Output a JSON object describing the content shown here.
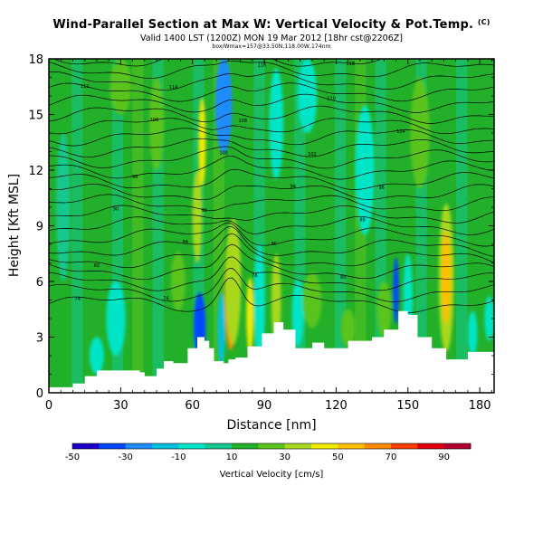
{
  "title": "Wind-Parallel Section at Max W: Vertical Velocity & Pot.Temp.",
  "title_suffix": "(C)",
  "subtitle": "Valid 1400 LST (1200Z) MON 19 Mar 2012 [18hr cst@2206Z]",
  "subtitle2": "box/Wmax=157@33.50N,118.00W,174nm",
  "chart_data": {
    "type": "heatmap",
    "xlabel": "Distance [nm]",
    "ylabel": "Height [Kft MSL]",
    "xlim": [
      0,
      186
    ],
    "ylim": [
      0,
      18
    ],
    "xticks": [
      "0",
      "30",
      "60",
      "90",
      "120",
      "150",
      "180"
    ],
    "yticks": [
      "0",
      "3",
      "6",
      "9",
      "12",
      "15",
      "18"
    ],
    "grid": false,
    "colorbar": {
      "label": "Vertical Velocity [cm/s]",
      "tick_labels": [
        "-50",
        "-30",
        "-10",
        "10",
        "30",
        "50",
        "70",
        "90"
      ],
      "range": [
        -50,
        100
      ],
      "colors": [
        "#1a00c8",
        "#0046ff",
        "#1e8cff",
        "#00bfdf",
        "#00e5c8",
        "#15c88f",
        "#22b02a",
        "#5ac41e",
        "#a8d81e",
        "#f0ea00",
        "#ffbf00",
        "#ff8a00",
        "#ff4000",
        "#e00010",
        "#b00030"
      ]
    },
    "terrain_kft": [
      {
        "x": 0,
        "h": 0.3
      },
      {
        "x": 10,
        "h": 0.5
      },
      {
        "x": 15,
        "h": 0.9
      },
      {
        "x": 20,
        "h": 1.2
      },
      {
        "x": 30,
        "h": 1.2
      },
      {
        "x": 38,
        "h": 1.1
      },
      {
        "x": 40,
        "h": 0.9
      },
      {
        "x": 45,
        "h": 1.3
      },
      {
        "x": 48,
        "h": 1.7
      },
      {
        "x": 52,
        "h": 1.6
      },
      {
        "x": 58,
        "h": 2.4
      },
      {
        "x": 62,
        "h": 3.0
      },
      {
        "x": 65,
        "h": 2.8
      },
      {
        "x": 67,
        "h": 2.4
      },
      {
        "x": 69,
        "h": 1.7
      },
      {
        "x": 73,
        "h": 1.6
      },
      {
        "x": 75,
        "h": 1.8
      },
      {
        "x": 78,
        "h": 1.9
      },
      {
        "x": 83,
        "h": 2.5
      },
      {
        "x": 89,
        "h": 3.2
      },
      {
        "x": 94,
        "h": 3.8
      },
      {
        "x": 98,
        "h": 3.4
      },
      {
        "x": 103,
        "h": 2.4
      },
      {
        "x": 110,
        "h": 2.7
      },
      {
        "x": 115,
        "h": 2.4
      },
      {
        "x": 125,
        "h": 2.8
      },
      {
        "x": 135,
        "h": 3.0
      },
      {
        "x": 140,
        "h": 3.4
      },
      {
        "x": 146,
        "h": 4.4
      },
      {
        "x": 150,
        "h": 4.2
      },
      {
        "x": 154,
        "h": 3.0
      },
      {
        "x": 160,
        "h": 2.4
      },
      {
        "x": 166,
        "h": 1.8
      },
      {
        "x": 175,
        "h": 2.2
      },
      {
        "x": 180,
        "h": 2.2
      },
      {
        "x": 186,
        "h": 2.2
      }
    ],
    "vertical_velocity_cells": [
      {
        "x": 76,
        "y": 5.5,
        "rx": 1.6,
        "ry": 2.6,
        "v": 95
      },
      {
        "x": 76,
        "y": 5.5,
        "rx": 2.6,
        "ry": 3.2,
        "v": 60
      },
      {
        "x": 77,
        "y": 6.0,
        "rx": 3.3,
        "ry": 3.4,
        "v": 35
      },
      {
        "x": 63,
        "y": 3.6,
        "rx": 2.5,
        "ry": 1.8,
        "v": -40
      },
      {
        "x": 72,
        "y": 3.4,
        "rx": 1.5,
        "ry": 2.0,
        "v": -20
      },
      {
        "x": 73,
        "y": 15.5,
        "rx": 3.5,
        "ry": 2.6,
        "v": -28
      },
      {
        "x": 64,
        "y": 13.5,
        "rx": 1.5,
        "ry": 2.4,
        "v": 40
      },
      {
        "x": 62,
        "y": 9.5,
        "rx": 2.0,
        "ry": 2.5,
        "v": 30
      },
      {
        "x": 84,
        "y": 4.2,
        "rx": 1.5,
        "ry": 2.0,
        "v": 45
      },
      {
        "x": 88,
        "y": 5.0,
        "rx": 2.2,
        "ry": 3.0,
        "v": -10
      },
      {
        "x": 95,
        "y": 5.0,
        "rx": 2.0,
        "ry": 2.5,
        "v": 30
      },
      {
        "x": 104,
        "y": 4.3,
        "rx": 2.5,
        "ry": 1.8,
        "v": -8
      },
      {
        "x": 145,
        "y": 5.5,
        "rx": 1.2,
        "ry": 1.8,
        "v": -40
      },
      {
        "x": 150,
        "y": 5.0,
        "rx": 2.0,
        "ry": 2.5,
        "v": -8
      },
      {
        "x": 166,
        "y": 6.2,
        "rx": 3.2,
        "ry": 4.0,
        "v": 30
      },
      {
        "x": 166,
        "y": 6.2,
        "rx": 1.8,
        "ry": 2.5,
        "v": 50
      },
      {
        "x": 110,
        "y": 5.0,
        "rx": 4.0,
        "ry": 1.5,
        "v": 25
      },
      {
        "x": 28,
        "y": 4.0,
        "rx": 4.0,
        "ry": 2.0,
        "v": -5
      },
      {
        "x": 20,
        "y": 2.0,
        "rx": 3.0,
        "ry": 1.0,
        "v": -8
      },
      {
        "x": 54,
        "y": 6.0,
        "rx": 3.0,
        "ry": 1.6,
        "v": 25
      },
      {
        "x": 125,
        "y": 3.5,
        "rx": 3.0,
        "ry": 1.0,
        "v": 25
      },
      {
        "x": 140,
        "y": 4.5,
        "rx": 3.0,
        "ry": 1.5,
        "v": 25
      },
      {
        "x": 177,
        "y": 3.2,
        "rx": 2.0,
        "ry": 1.2,
        "v": -8
      },
      {
        "x": 184,
        "y": 4.0,
        "rx": 2.0,
        "ry": 1.2,
        "v": -8
      },
      {
        "x": 30,
        "y": 16.5,
        "rx": 4.5,
        "ry": 1.5,
        "v": 25
      },
      {
        "x": 95,
        "y": 14.5,
        "rx": 3.0,
        "ry": 3.0,
        "v": -6
      },
      {
        "x": 132,
        "y": 12.0,
        "rx": 4.0,
        "ry": 3.5,
        "v": -6
      },
      {
        "x": 108,
        "y": 16.0,
        "rx": 4.0,
        "ry": 2.0,
        "v": -8
      },
      {
        "x": 45,
        "y": 14.5,
        "rx": 3.0,
        "ry": 2.5,
        "v": 25
      },
      {
        "x": 155,
        "y": 14.0,
        "rx": 4.0,
        "ry": 3.0,
        "v": 25
      },
      {
        "x": 6,
        "y": 10.0,
        "rx": 3.0,
        "ry": 4.0,
        "v": 5
      }
    ],
    "theta_contour_labels": [
      "74",
      "76",
      "78",
      "80",
      "82",
      "84",
      "86",
      "88",
      "90",
      "92",
      "94",
      "96",
      "98",
      "100",
      "102",
      "104",
      "106",
      "108",
      "110",
      "112",
      "114",
      "116",
      "118",
      "120",
      "122"
    ]
  }
}
